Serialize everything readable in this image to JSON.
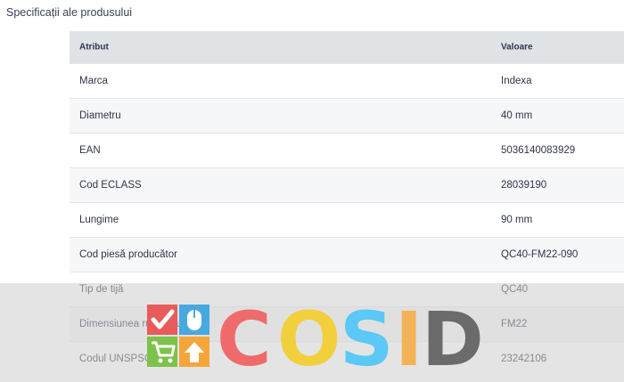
{
  "section_title": "Specificații ale produsului",
  "table": {
    "headers": {
      "attribute": "Atribut",
      "value": "Valoare"
    },
    "rows": [
      {
        "attribute": "Marca",
        "value": "Indexa"
      },
      {
        "attribute": "Diametru",
        "value": "40 mm"
      },
      {
        "attribute": "EAN",
        "value": "5036140083929"
      },
      {
        "attribute": "Cod ECLASS",
        "value": "28039190"
      },
      {
        "attribute": "Lungime",
        "value": "90 mm"
      },
      {
        "attribute": "Cod piesă producător",
        "value": "QC40-FM22-090"
      },
      {
        "attribute": "Tip de tijă",
        "value": "QC40"
      },
      {
        "attribute": "Dimensiunea rulmentului",
        "value": "FM22"
      },
      {
        "attribute": "Codul UNSPSC",
        "value": "23242106"
      }
    ]
  },
  "watermark": {
    "text": "COSID",
    "colors": {
      "C": "#ef6a6a",
      "O": "#f2cf3c",
      "S": "#5bc8f5",
      "I": "#f3b255",
      "D": "#6b6b6b",
      "tile_red": "#e85b5b",
      "tile_blue": "#47a9e0",
      "tile_green": "#7cc24b",
      "tile_orange": "#f4a63a"
    },
    "icons": [
      "checkmark-icon",
      "mouse-icon",
      "cart-icon",
      "home-arrow-icon"
    ]
  }
}
